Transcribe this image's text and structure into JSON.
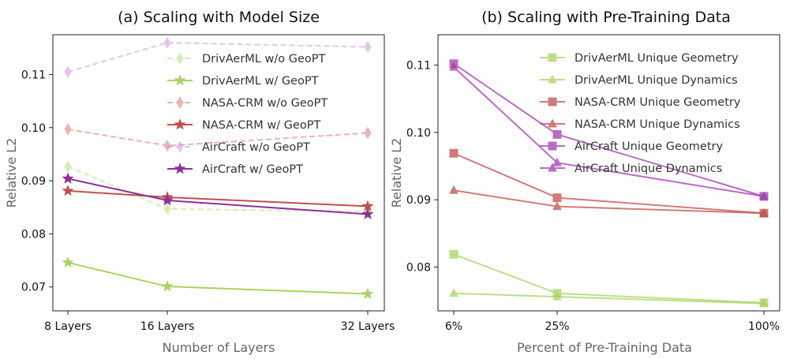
{
  "chart_data": [
    {
      "type": "line",
      "title": "(a) Scaling with Model Size",
      "xlabel": "Number of Layers",
      "ylabel": "Relative L2",
      "categories": [
        "8 Layers",
        "16 Layers",
        "32 Layers"
      ],
      "yticks": [
        "0.07",
        "0.08",
        "0.09",
        "0.10",
        "0.11"
      ],
      "ylim": [
        0.0655,
        0.1175
      ],
      "legend_position": "upper-right",
      "series": [
        {
          "name": "DrivAerML w/o GeoPT",
          "values": [
            0.0927,
            0.0847,
            0.0842
          ],
          "color": "#a8d460",
          "marker": "diamond",
          "dashed": true,
          "alpha": 0.45
        },
        {
          "name": "DrivAerML w/ GeoPT",
          "values": [
            0.0746,
            0.0701,
            0.0687
          ],
          "color": "#a8d460",
          "marker": "star",
          "dashed": false,
          "alpha": 1.0
        },
        {
          "name": "NASA-CRM w/o GeoPT",
          "values": [
            0.0997,
            0.0966,
            0.099
          ],
          "color": "#cf5a5a",
          "marker": "diamond",
          "dashed": true,
          "alpha": 0.45
        },
        {
          "name": "NASA-CRM w/ GeoPT",
          "values": [
            0.0881,
            0.0869,
            0.0852
          ],
          "color": "#c0504d",
          "marker": "star",
          "dashed": false,
          "alpha": 1.0
        },
        {
          "name": "AirCraft w/o GeoPT",
          "values": [
            0.1105,
            0.116,
            0.1152
          ],
          "color": "#c77fd4",
          "marker": "diamond",
          "dashed": true,
          "alpha": 0.45
        },
        {
          "name": "AirCraft w/ GeoPT",
          "values": [
            0.0904,
            0.0863,
            0.0837
          ],
          "color": "#8e2f9a",
          "marker": "star",
          "dashed": false,
          "alpha": 1.0
        }
      ]
    },
    {
      "type": "line",
      "title": "(b) Scaling with Pre-Training Data",
      "xlabel": "Percent of Pre-Training Data",
      "ylabel": "Relative L2",
      "categories": [
        "6%",
        "25%",
        "100%"
      ],
      "yticks": [
        "0.08",
        "0.09",
        "0.10",
        "0.11"
      ],
      "ylim": [
        0.0735,
        0.1145
      ],
      "legend_position": "upper-right",
      "series": [
        {
          "name": "DrivAerML Unique Geometry",
          "values": [
            0.0819,
            0.0761,
            0.0747
          ],
          "color": "#a8d460",
          "marker": "square",
          "alpha": 0.75
        },
        {
          "name": "DrivAerML Unique Dynamics",
          "values": [
            0.0761,
            0.0756,
            0.0746
          ],
          "color": "#a8d460",
          "marker": "triangle",
          "alpha": 0.75
        },
        {
          "name": "NASA-CRM Unique Geometry",
          "values": [
            0.0969,
            0.0903,
            0.088
          ],
          "color": "#c0504d",
          "marker": "square",
          "alpha": 0.75
        },
        {
          "name": "NASA-CRM Unique Dynamics",
          "values": [
            0.0914,
            0.089,
            0.088
          ],
          "color": "#c0504d",
          "marker": "triangle",
          "alpha": 0.75
        },
        {
          "name": "AirCraft Unique Geometry",
          "values": [
            0.1102,
            0.0997,
            0.0905
          ],
          "color": "#a23bb0",
          "marker": "square",
          "alpha": 0.75
        },
        {
          "name": "AirCraft Unique Dynamics",
          "values": [
            0.1097,
            0.0955,
            0.0905
          ],
          "color": "#a23bb0",
          "marker": "triangle",
          "alpha": 0.75
        }
      ]
    }
  ]
}
